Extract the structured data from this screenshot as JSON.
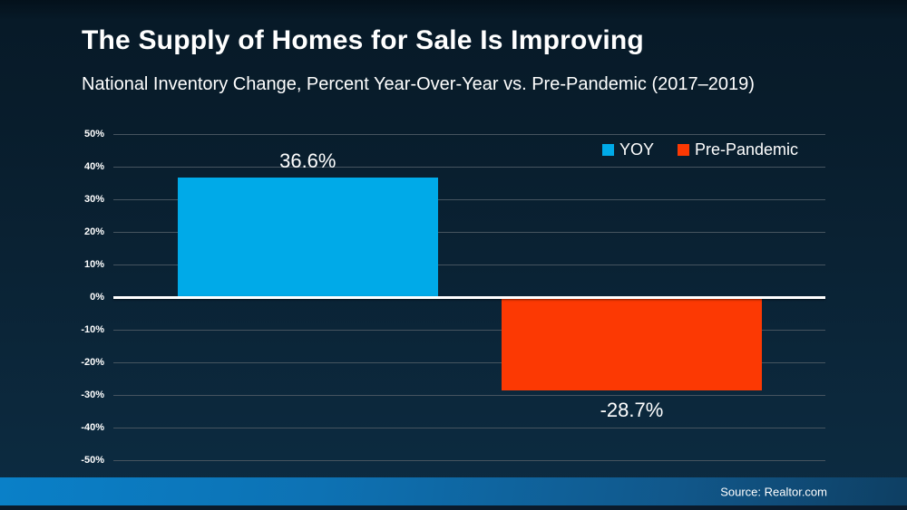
{
  "title": "The Supply of Homes for Sale Is Improving",
  "subtitle": "National Inventory Change, Percent Year-Over-Year vs. Pre-Pandemic (2017–2019)",
  "footer": {
    "source_label": "Source: Realtor.com"
  },
  "colors": {
    "background_top": "#071a28",
    "background_bottom": "#0d2c42",
    "yoy_blue": "#00aae8",
    "pre_pandemic_orange": "#fc3903",
    "gridline": "#46545f",
    "zero_line": "#ffffff",
    "footer_gradient_left": "#0a80c8",
    "footer_gradient_right": "#0e3f63",
    "text": "#ffffff"
  },
  "chart_data": {
    "type": "bar",
    "title": "The Supply of Homes for Sale Is Improving",
    "subtitle": "National Inventory Change, Percent Year-Over-Year vs. Pre-Pandemic (2017–2019)",
    "categories": [
      "YOY",
      "Pre-Pandemic"
    ],
    "series": [
      {
        "name": "YOY",
        "value": 36.6,
        "label": "36.6%",
        "color": "#00aae8"
      },
      {
        "name": "Pre-Pandemic",
        "value": -28.7,
        "label": "-28.7%",
        "color": "#fc3903"
      }
    ],
    "ylabel": "",
    "xlabel": "",
    "ylim": [
      -50,
      50
    ],
    "ytick_step": 10,
    "ytick_suffix": "%",
    "grid": true,
    "legend_position": "top-right"
  }
}
